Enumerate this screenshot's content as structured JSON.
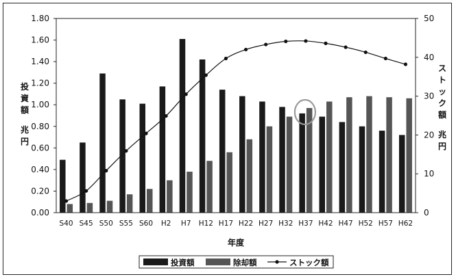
{
  "chart_data": {
    "type": "bar",
    "categories": [
      "S40",
      "S45",
      "S50",
      "S55",
      "S60",
      "H2",
      "H7",
      "H12",
      "H17",
      "H22",
      "H27",
      "H32",
      "H37",
      "H42",
      "H47",
      "H52",
      "H57",
      "H62"
    ],
    "series": [
      {
        "name": "投資額",
        "type": "bar",
        "axis": "left",
        "color": "#1a1a1a",
        "values": [
          0.49,
          0.65,
          1.29,
          1.05,
          1.01,
          1.17,
          1.61,
          1.42,
          1.14,
          1.08,
          1.03,
          0.98,
          0.92,
          0.89,
          0.84,
          0.8,
          0.76,
          0.72
        ]
      },
      {
        "name": "除却額",
        "type": "bar",
        "axis": "left",
        "color": "#555555",
        "values": [
          0.08,
          0.09,
          0.11,
          0.17,
          0.22,
          0.3,
          0.38,
          0.48,
          0.56,
          0.68,
          0.8,
          0.89,
          0.97,
          1.03,
          1.07,
          1.08,
          1.07,
          1.06
        ]
      },
      {
        "name": "ストック額",
        "type": "line",
        "axis": "right",
        "color": "#111111",
        "values": [
          3.0,
          5.6,
          10.8,
          15.9,
          20.4,
          24.9,
          30.5,
          35.4,
          39.7,
          42.0,
          43.3,
          44.1,
          44.2,
          43.6,
          42.6,
          41.3,
          39.7,
          38.2
        ]
      }
    ],
    "xlabel": "年度",
    "ylabel_left": [
      "投",
      "資",
      "額",
      "",
      "兆",
      "円"
    ],
    "ylabel_right": [
      "ス",
      "ト",
      "ッ",
      "ク",
      "額",
      "",
      "兆",
      "円"
    ],
    "ylim_left": [
      0,
      1.8
    ],
    "yticks_left": [
      "0.00",
      "0.20",
      "0.40",
      "0.60",
      "0.80",
      "1.00",
      "1.20",
      "1.40",
      "1.60",
      "1.80"
    ],
    "ylim_right": [
      0,
      50
    ],
    "yticks_right": [
      "0",
      "10",
      "20",
      "30",
      "40",
      "50"
    ],
    "legend_position": "bottom",
    "annotation": {
      "type": "circle",
      "category": "H37"
    }
  }
}
